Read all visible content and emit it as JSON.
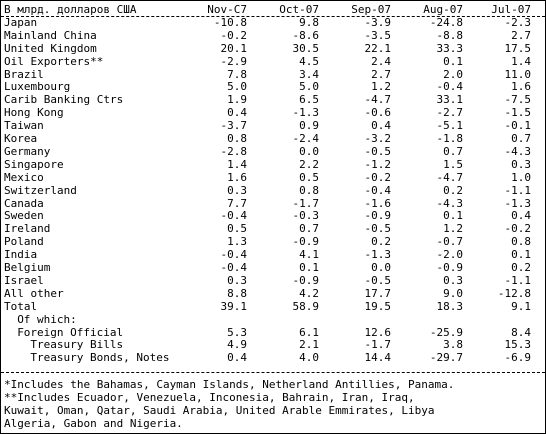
{
  "header": {
    "label": "В млрд. долларов США",
    "columns": [
      "Nov-C7",
      "Oct-07",
      "Sep-07",
      "Aug-07",
      "Jul-07"
    ]
  },
  "rows": [
    [
      "Japan",
      "-10.8",
      "9.8",
      "-3.9",
      "-24.8",
      "-2.3"
    ],
    [
      "Mainland China",
      "-0.2",
      "-8.6",
      "-3.5",
      "-8.8",
      "2.7"
    ],
    [
      "United Kingdom",
      "20.1",
      "30.5",
      "22.1",
      "33.3",
      "17.5"
    ],
    [
      "Oil Exporters**",
      "-2.9",
      "4.5",
      "2.4",
      "0.1",
      "1.4"
    ],
    [
      "Brazil",
      "7.8",
      "3.4",
      "2.7",
      "2.0",
      "11.0"
    ],
    [
      "Luxembourg",
      "5.0",
      "5.0",
      "1.2",
      "-0.4",
      "1.6"
    ],
    [
      "Carib Banking Ctrs",
      "1.9",
      "6.5",
      "-4.7",
      "33.1",
      "-7.5"
    ],
    [
      "Hong Kong",
      "0.4",
      "-1.3",
      "-0.6",
      "-2.7",
      "-1.5"
    ],
    [
      "Taiwan",
      "-3.7",
      "0.9",
      "0.4",
      "-5.1",
      "-0.1"
    ],
    [
      "Korea",
      "0.8",
      "-2.4",
      "-3.2",
      "-1.8",
      "0.7"
    ],
    [
      "Germany",
      "-2.8",
      "0.0",
      "-0.5",
      "0.7",
      "-4.3"
    ],
    [
      "Singapore",
      "1.4",
      "2.2",
      "-1.2",
      "1.5",
      "0.3"
    ],
    [
      "Mexico",
      "1.6",
      "0.5",
      "-0.2",
      "-4.7",
      "1.0"
    ],
    [
      "Switzerland",
      "0.3",
      "0.8",
      "-0.4",
      "0.2",
      "-1.1"
    ],
    [
      "Canada",
      "7.7",
      "-1.7",
      "-1.6",
      "-4.3",
      "-1.3"
    ],
    [
      "Sweden",
      "-0.4",
      "-0.3",
      "-0.9",
      "0.1",
      "0.4"
    ],
    [
      "Ireland",
      "0.5",
      "0.7",
      "-0.5",
      "1.2",
      "-0.2"
    ],
    [
      "Poland",
      "1.3",
      "-0.9",
      "0.2",
      "-0.7",
      "0.8"
    ],
    [
      "India",
      "-0.4",
      "4.1",
      "-1.3",
      "-2.0",
      "0.1"
    ],
    [
      "Belgium",
      "-0.4",
      "0.1",
      "0.0",
      "-0.9",
      "0.2"
    ],
    [
      "Israel",
      "0.3",
      "-0.9",
      "-0.5",
      "0.3",
      "-1.1"
    ],
    [
      "All other",
      "8.8",
      "4.2",
      "17.7",
      "9.0",
      "-12.8"
    ],
    [
      "Total",
      "39.1",
      "58.9",
      "19.5",
      "18.3",
      "9.1"
    ]
  ],
  "of_which": "Of which:",
  "sub_rows": [
    [
      "Foreign Official",
      "5.3",
      "6.1",
      "12.6",
      "-25.9",
      "8.4"
    ],
    [
      "Treasury Bills",
      "4.9",
      "2.1",
      "-1.7",
      "3.8",
      "15.3"
    ],
    [
      "Treasury Bonds, Notes",
      "0.4",
      "4.0",
      "14.4",
      "-29.7",
      "-6.9"
    ]
  ],
  "footnotes": [
    "*Includes the Bahamas, Cayman Islands, Netherland Antillies, Panama.",
    "**Includes Ecuador, Venezuela, Inconesia, Bahrain, Iran, Iraq,",
    "Kuwait, Oman, Qatar, Saudi Arabia, United Arable Emmirates, Libya",
    "Algeria, Gabon and Nigeria."
  ]
}
